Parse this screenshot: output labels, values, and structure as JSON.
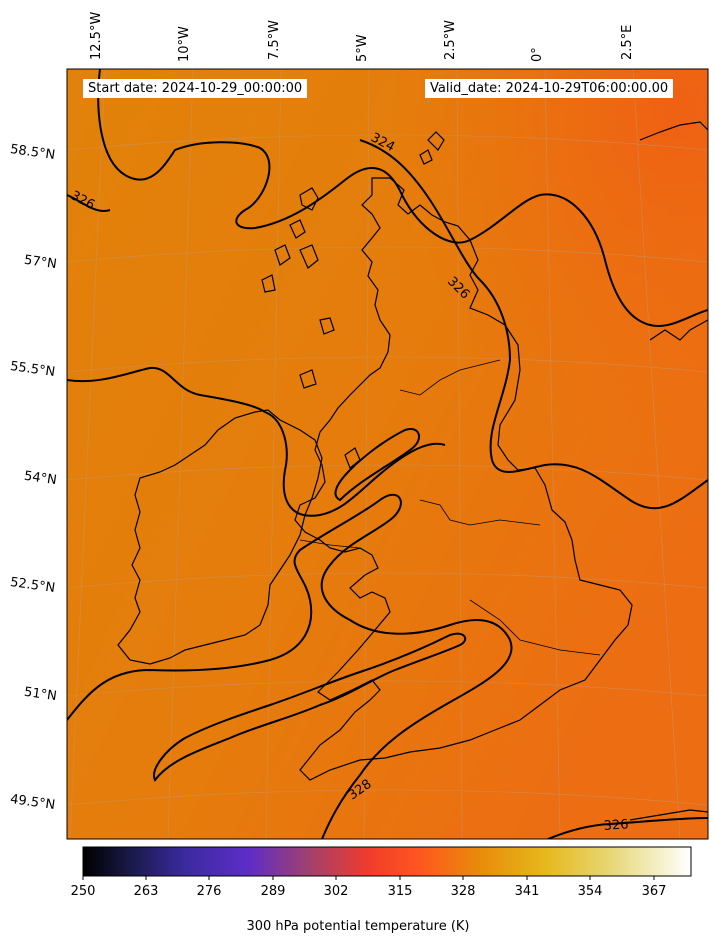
{
  "map": {
    "start_date": "Start date: 2024-10-29_00:00:00",
    "valid_date": "Valid_date: 2024-10-29T06:00:00.00",
    "lon_labels": [
      "12.5°W",
      "10°W",
      "7.5°W",
      "5°W",
      "2.5°W",
      "0°",
      "2.5°E"
    ],
    "lat_labels": [
      "58.5°N",
      "57°N",
      "55.5°N",
      "54°N",
      "52.5°N",
      "51°N",
      "49.5°N"
    ],
    "contour_labels": [
      "324",
      "326",
      "326",
      "326",
      "328"
    ],
    "colors": {
      "field_base": "#e5810a",
      "field_warm": "#ef6a12",
      "coast": "#000000"
    }
  },
  "colorbar": {
    "title": "300 hPa potential temperature (K)",
    "ticks": [
      "250",
      "263",
      "276",
      "289",
      "302",
      "315",
      "328",
      "341",
      "354",
      "367"
    ],
    "range": [
      250,
      373
    ],
    "colormap": "CMRmap"
  }
}
